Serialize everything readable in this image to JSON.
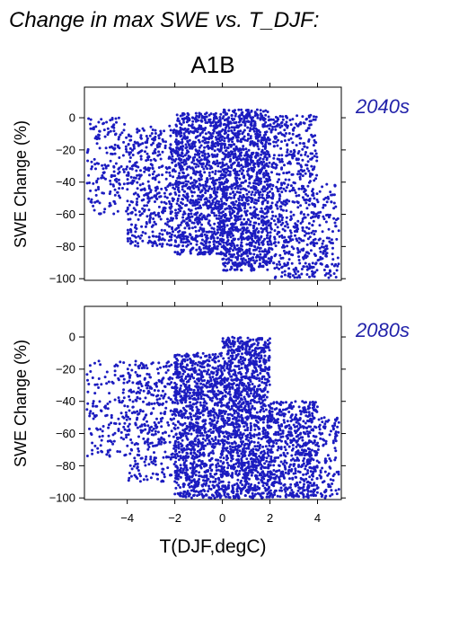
{
  "figure": {
    "title": "Change in max SWE vs. T_DJF:",
    "scenario": "A1B",
    "point_color": "#1c1cc0",
    "period_label_color": "#2222aa"
  },
  "chart_data": [
    {
      "type": "scatter",
      "period": "2040s",
      "ylabel": "SWE Change (%)",
      "xlabel": "T(DJF,degC)",
      "xlim": [
        -5.8,
        5.0
      ],
      "ylim": [
        -101,
        19
      ],
      "xticks": [
        -4,
        -2,
        0,
        2,
        4
      ],
      "yticks": [
        0,
        -20,
        -40,
        -60,
        -80,
        -100
      ],
      "xtick_labels": [
        "−4",
        "−2",
        "0",
        "2",
        "4"
      ],
      "ytick_labels": [
        "0",
        "−20",
        "−40",
        "−60",
        "−80",
        "−100"
      ],
      "show_xtick_labels": false,
      "grid": false,
      "n_points_approx": 9000,
      "x_range_of_points": [
        -5.7,
        4.9
      ],
      "y_range_of_points": [
        -100,
        8
      ],
      "description_of_density": [
        {
          "x": [
            -5.7,
            -4.0
          ],
          "y": [
            -60,
            0
          ],
          "weight": 0.05
        },
        {
          "x": [
            -4.0,
            -2.0
          ],
          "y": [
            -80,
            -5
          ],
          "weight": 0.12
        },
        {
          "x": [
            -2.0,
            0.0
          ],
          "y": [
            -85,
            3
          ],
          "weight": 0.28
        },
        {
          "x": [
            0.0,
            2.0
          ],
          "y": [
            -95,
            5
          ],
          "weight": 0.35
        },
        {
          "x": [
            2.0,
            4.0
          ],
          "y": [
            -100,
            2
          ],
          "weight": 0.17
        },
        {
          "x": [
            4.0,
            4.9
          ],
          "y": [
            -100,
            -40
          ],
          "weight": 0.03
        }
      ]
    },
    {
      "type": "scatter",
      "period": "2080s",
      "ylabel": "SWE Change (%)",
      "xlabel": "T(DJF,degC)",
      "xlim": [
        -5.8,
        5.0
      ],
      "ylim": [
        -101,
        19
      ],
      "xticks": [
        -4,
        -2,
        0,
        2,
        4
      ],
      "yticks": [
        0,
        -20,
        -40,
        -60,
        -80,
        -100
      ],
      "xtick_labels": [
        "−4",
        "−2",
        "0",
        "2",
        "4"
      ],
      "ytick_labels": [
        "0",
        "−20",
        "−40",
        "−60",
        "−80",
        "−100"
      ],
      "show_xtick_labels": true,
      "grid": false,
      "n_points_approx": 9000,
      "x_range_of_points": [
        -5.7,
        4.9
      ],
      "y_range_of_points": [
        -100,
        2
      ],
      "description_of_density": [
        {
          "x": [
            -5.7,
            -4.0
          ],
          "y": [
            -75,
            -15
          ],
          "weight": 0.04
        },
        {
          "x": [
            -4.0,
            -2.0
          ],
          "y": [
            -90,
            -15
          ],
          "weight": 0.1
        },
        {
          "x": [
            -2.0,
            0.0
          ],
          "y": [
            -100,
            -10
          ],
          "weight": 0.3
        },
        {
          "x": [
            0.0,
            2.0
          ],
          "y": [
            -100,
            0
          ],
          "weight": 0.36
        },
        {
          "x": [
            2.0,
            4.0
          ],
          "y": [
            -100,
            -40
          ],
          "weight": 0.17
        },
        {
          "x": [
            4.0,
            4.9
          ],
          "y": [
            -100,
            -50
          ],
          "weight": 0.03
        }
      ]
    }
  ]
}
